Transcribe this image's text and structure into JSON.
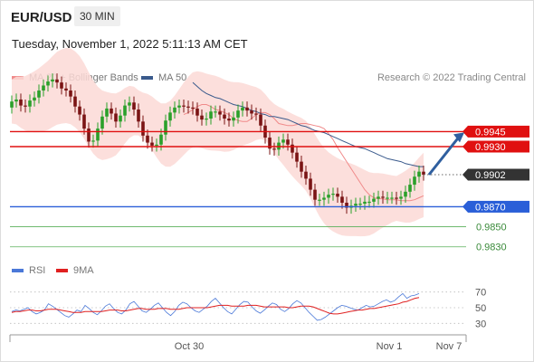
{
  "header": {
    "pair": "EUR/USD",
    "timeframe": "30 MIN",
    "datetime": "Tuesday, November 1, 2022 5:11:13 AM CET"
  },
  "legend": {
    "ma20": {
      "label": "MA 20 + Bollinger Bands",
      "color": "#f08a8a"
    },
    "ma50": {
      "label": "MA 50",
      "color": "#3a5a8c"
    },
    "copyright": "Research © 2022 Trading Central"
  },
  "rsi_legend": {
    "rsi": {
      "label": "RSI",
      "color": "#4a78d8"
    },
    "ma9": {
      "label": "9MA",
      "color": "#e02020"
    }
  },
  "chart_data": [
    {
      "type": "candlestick",
      "title": "",
      "ylim": [
        0.9818,
        0.9986
      ],
      "x_ticks": [
        "Oct 30",
        "Nov 1",
        "Nov 7"
      ],
      "last_price": "0.9902",
      "levels": [
        {
          "value": 0.9945,
          "label": "0.9945",
          "kind": "resistance"
        },
        {
          "value": 0.993,
          "label": "0.9930",
          "kind": "resistance"
        },
        {
          "value": 0.987,
          "label": "0.9870",
          "kind": "pivot"
        },
        {
          "value": 0.985,
          "label": "0.9850",
          "kind": "support"
        },
        {
          "value": 0.983,
          "label": "0.9830",
          "kind": "support"
        }
      ],
      "close": [
        0.9975,
        0.9977,
        0.9971,
        0.997,
        0.9976,
        0.9979,
        0.9986,
        0.9991,
        0.9995,
        0.9997,
        0.9994,
        0.9988,
        0.9986,
        0.998,
        0.997,
        0.9962,
        0.9948,
        0.9935,
        0.9936,
        0.9948,
        0.996,
        0.9968,
        0.9963,
        0.9955,
        0.9961,
        0.9971,
        0.9974,
        0.9967,
        0.9955,
        0.9941,
        0.9934,
        0.9931,
        0.9932,
        0.9942,
        0.9956,
        0.9964,
        0.9969,
        0.9971,
        0.997,
        0.9969,
        0.9968,
        0.9961,
        0.9957,
        0.9958,
        0.9965,
        0.9965,
        0.9962,
        0.9958,
        0.9956,
        0.9959,
        0.9966,
        0.9969,
        0.9966,
        0.9963,
        0.9962,
        0.9951,
        0.9939,
        0.9928,
        0.9927,
        0.9934,
        0.9937,
        0.9932,
        0.9924,
        0.9915,
        0.9905,
        0.9898,
        0.9887,
        0.9877,
        0.9877,
        0.9879,
        0.9882,
        0.9883,
        0.988,
        0.9874,
        0.9869,
        0.9871,
        0.9873,
        0.9873,
        0.9875,
        0.9875,
        0.9878,
        0.988,
        0.9879,
        0.9879,
        0.9879,
        0.9878,
        0.988,
        0.9885,
        0.9892,
        0.99,
        0.9905,
        0.9902
      ],
      "ma20": [
        0.9962,
        0.9964,
        0.9967,
        0.997,
        0.9972,
        0.9972,
        0.997,
        0.9967,
        0.9966,
        0.9964,
        0.9962,
        0.9958,
        0.9956,
        0.9955,
        0.9955,
        0.9958,
        0.9962,
        0.9964,
        0.9964,
        0.9962,
        0.9958,
        0.9953,
        0.9952,
        0.9951,
        0.9951,
        0.9952,
        0.9953,
        0.9953,
        0.9952,
        0.9951,
        0.995,
        0.9948,
        0.9943,
        0.9937,
        0.9929,
        0.9922,
        0.9915,
        0.9908,
        0.9901,
        0.9894,
        0.9887,
        0.9882,
        0.9879,
        0.9878,
        0.9878,
        0.9877,
        0.9877,
        0.9877,
        0.9876,
        0.9876,
        0.9876,
        0.9877,
        0.9879,
        0.9881
      ],
      "ma20_start": 38,
      "ma50": [
        0.9994,
        0.999,
        0.9986,
        0.9983,
        0.9981,
        0.9979,
        0.9978,
        0.9976,
        0.9974,
        0.9972,
        0.9971,
        0.997,
        0.9968,
        0.9966,
        0.9965,
        0.9963,
        0.9962,
        0.996,
        0.996,
        0.9959,
        0.9958,
        0.9957,
        0.9955,
        0.9953,
        0.9951,
        0.995,
        0.9948,
        0.9946,
        0.9945,
        0.9944,
        0.9942,
        0.994,
        0.9938,
        0.9936,
        0.9934,
        0.9932,
        0.993,
        0.9929,
        0.9928,
        0.9926,
        0.9924,
        0.9922,
        0.992,
        0.9918,
        0.9917,
        0.9916,
        0.9915,
        0.9913,
        0.9912,
        0.9911,
        0.991,
        0.991
      ]
    },
    {
      "type": "line",
      "title": "",
      "ylim": [
        20,
        80
      ],
      "y_ticks": [
        70,
        50,
        30
      ],
      "series": [
        {
          "name": "RSI",
          "values": [
            45,
            47,
            46,
            48,
            50,
            45,
            42,
            44,
            47,
            55,
            52,
            48,
            44,
            40,
            38,
            42,
            47,
            45,
            53,
            49,
            44,
            41,
            46,
            52,
            55,
            49,
            44,
            42,
            47,
            55,
            58,
            52,
            46,
            44,
            48,
            53,
            56,
            50,
            44,
            40,
            45,
            53,
            57,
            55,
            50,
            46,
            44,
            48,
            52,
            58,
            62,
            56,
            50,
            45,
            42,
            48,
            54,
            58,
            57,
            51,
            46,
            43,
            47,
            52,
            56,
            54,
            48,
            45,
            49,
            55,
            59,
            56,
            50,
            44,
            39,
            34,
            35,
            38,
            42,
            46,
            50,
            53,
            52,
            50,
            48,
            47,
            50,
            53,
            51,
            52,
            55,
            58,
            60,
            57,
            59,
            64,
            68,
            62,
            65,
            66,
            68
          ]
        },
        {
          "name": "9MA",
          "values": [
            44,
            45,
            45,
            46,
            47,
            47,
            46,
            46,
            47,
            48,
            48,
            48,
            47,
            46,
            45,
            44,
            44,
            44,
            45,
            45,
            45,
            45,
            45,
            46,
            47,
            47,
            47,
            46,
            46,
            47,
            48,
            49,
            49,
            48,
            48,
            48,
            49,
            49,
            49,
            48,
            48,
            48,
            49,
            50,
            50,
            50,
            50,
            50,
            50,
            51,
            52,
            53,
            53,
            53,
            52,
            52,
            52,
            52,
            53,
            53,
            53,
            52,
            51,
            51,
            51,
            51,
            51,
            51,
            50,
            50,
            51,
            52,
            52,
            52,
            51,
            49,
            47,
            45,
            43,
            42,
            42,
            43,
            44,
            45,
            46,
            47,
            47,
            48,
            49,
            49,
            50,
            51,
            52,
            53,
            54,
            55,
            57,
            58,
            60,
            62,
            63
          ]
        }
      ]
    }
  ]
}
